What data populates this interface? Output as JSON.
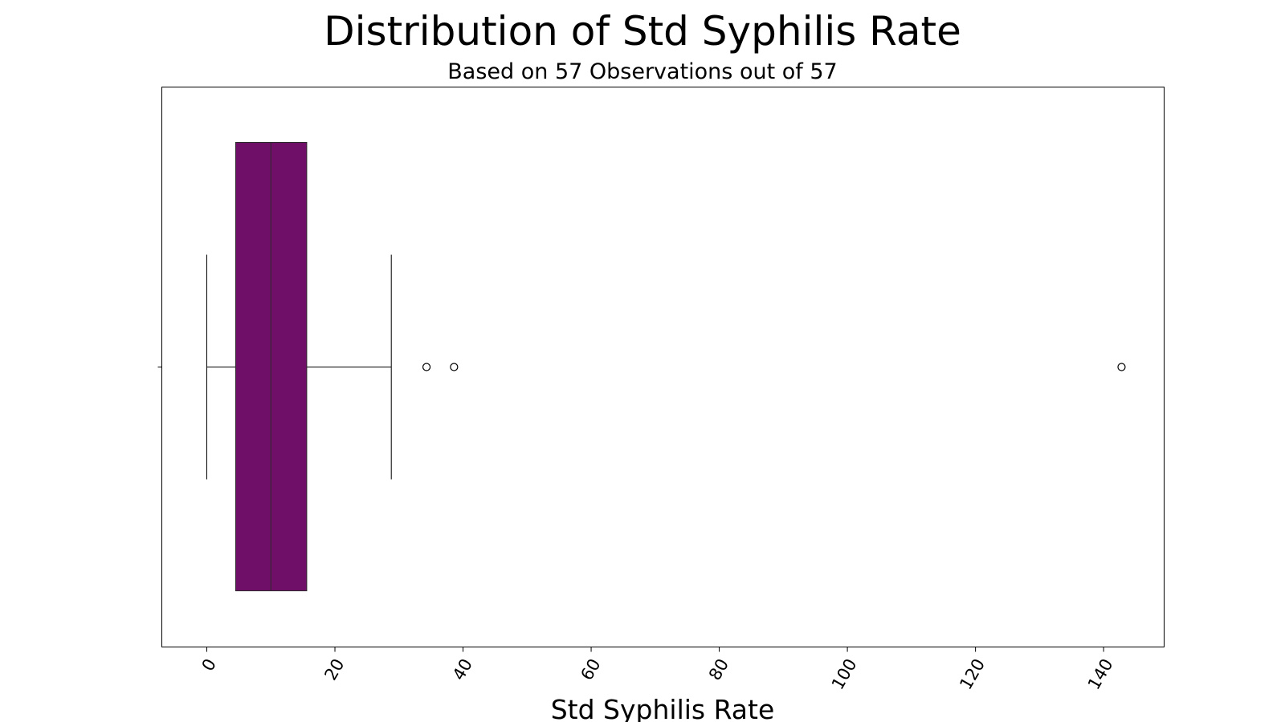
{
  "chart_data": {
    "type": "box",
    "title": "Distribution of Std Syphilis Rate",
    "subtitle": "Based on 57 Observations out of 57",
    "xlabel": "Std Syphilis Rate",
    "ylabel": "",
    "orientation": "horizontal",
    "xlim": [
      -7,
      150
    ],
    "x_ticks": [
      0,
      20,
      40,
      60,
      80,
      100,
      120,
      140
    ],
    "x_tick_rotation": -60,
    "box_color": "#6f0f68",
    "grid": false,
    "legend": "none",
    "series": [
      {
        "whisker_low": 0,
        "q1": 4.5,
        "median": 10,
        "q3": 15.6,
        "whisker_high": 28.8,
        "outliers": [
          34.3,
          38.6,
          142.8
        ]
      }
    ]
  }
}
